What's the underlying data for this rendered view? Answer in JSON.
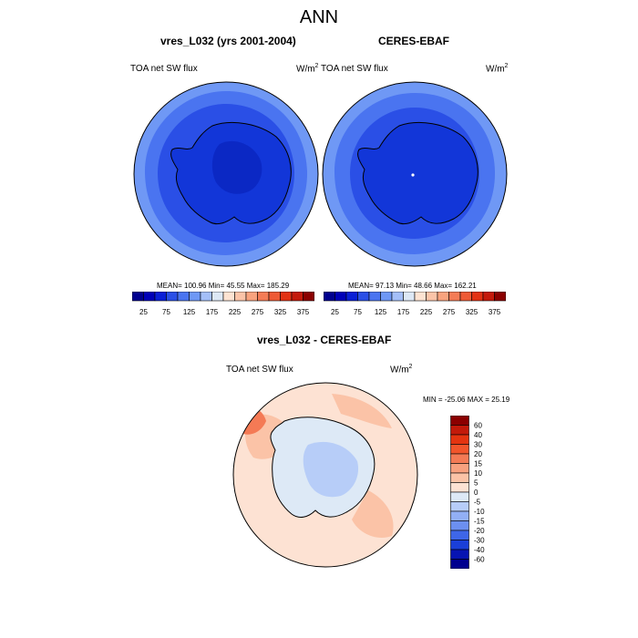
{
  "figure": {
    "title": "ANN",
    "panels": [
      {
        "title": "vres_L032 (yrs 2001-2004)",
        "variable": "TOA net SW flux",
        "units_base": "W/m",
        "units_exp": "2",
        "stats": "MEAN= 100.96  Min=  45.55  Max= 185.29"
      },
      {
        "title": "CERES-EBAF",
        "variable": "TOA net SW flux",
        "units_base": "W/m",
        "units_exp": "2",
        "stats": "MEAN=  97.13  Min=  48.66  Max= 162.21"
      },
      {
        "title": "vres_L032 - CERES-EBAF",
        "variable": "TOA net SW flux",
        "units_base": "W/m",
        "units_exp": "2",
        "stats": "MIN = -25.06 MAX =  25.19"
      }
    ]
  },
  "colorbars": {
    "horizontal": {
      "colors": [
        "#00008f",
        "#0000b8",
        "#0a1fd6",
        "#2a4fe6",
        "#4a74f0",
        "#6f98f5",
        "#a4bff8",
        "#dde8f5",
        "#fde3d2",
        "#fbc4a8",
        "#f8a37e",
        "#f47c56",
        "#ee5a35",
        "#e23214",
        "#c41a0c",
        "#8b0000"
      ],
      "tick_labels": [
        "25",
        "75",
        "125",
        "175",
        "225",
        "275",
        "325",
        "375"
      ]
    },
    "vertical": {
      "colors": [
        "#8b0000",
        "#c21a0a",
        "#e43410",
        "#f2552b",
        "#f47a55",
        "#f8a17f",
        "#fbc3a7",
        "#fde2d3",
        "#dde9f6",
        "#b7cdf8",
        "#92aff5",
        "#6c8ff0",
        "#3e66e8",
        "#1a3fd8",
        "#0714b2",
        "#00008f"
      ],
      "tick_labels": [
        "60",
        "40",
        "30",
        "20",
        "15",
        "10",
        "5",
        "0",
        "-5",
        "-10",
        "-15",
        "-20",
        "-30",
        "-40",
        "-60"
      ]
    }
  },
  "map_colors": {
    "ocean_outer": "#5f89f0",
    "ring_mid": "#3f66e8",
    "ring_inner": "#2448e0",
    "land": "#1236d8",
    "land_core": "#0b28c4",
    "diff_background": "#fde2d3",
    "diff_pos_mid": "#fbc3a7",
    "diff_pos_high": "#f47a55",
    "diff_neg_low": "#dde9f6",
    "diff_neg_mid": "#b7cdf8"
  }
}
